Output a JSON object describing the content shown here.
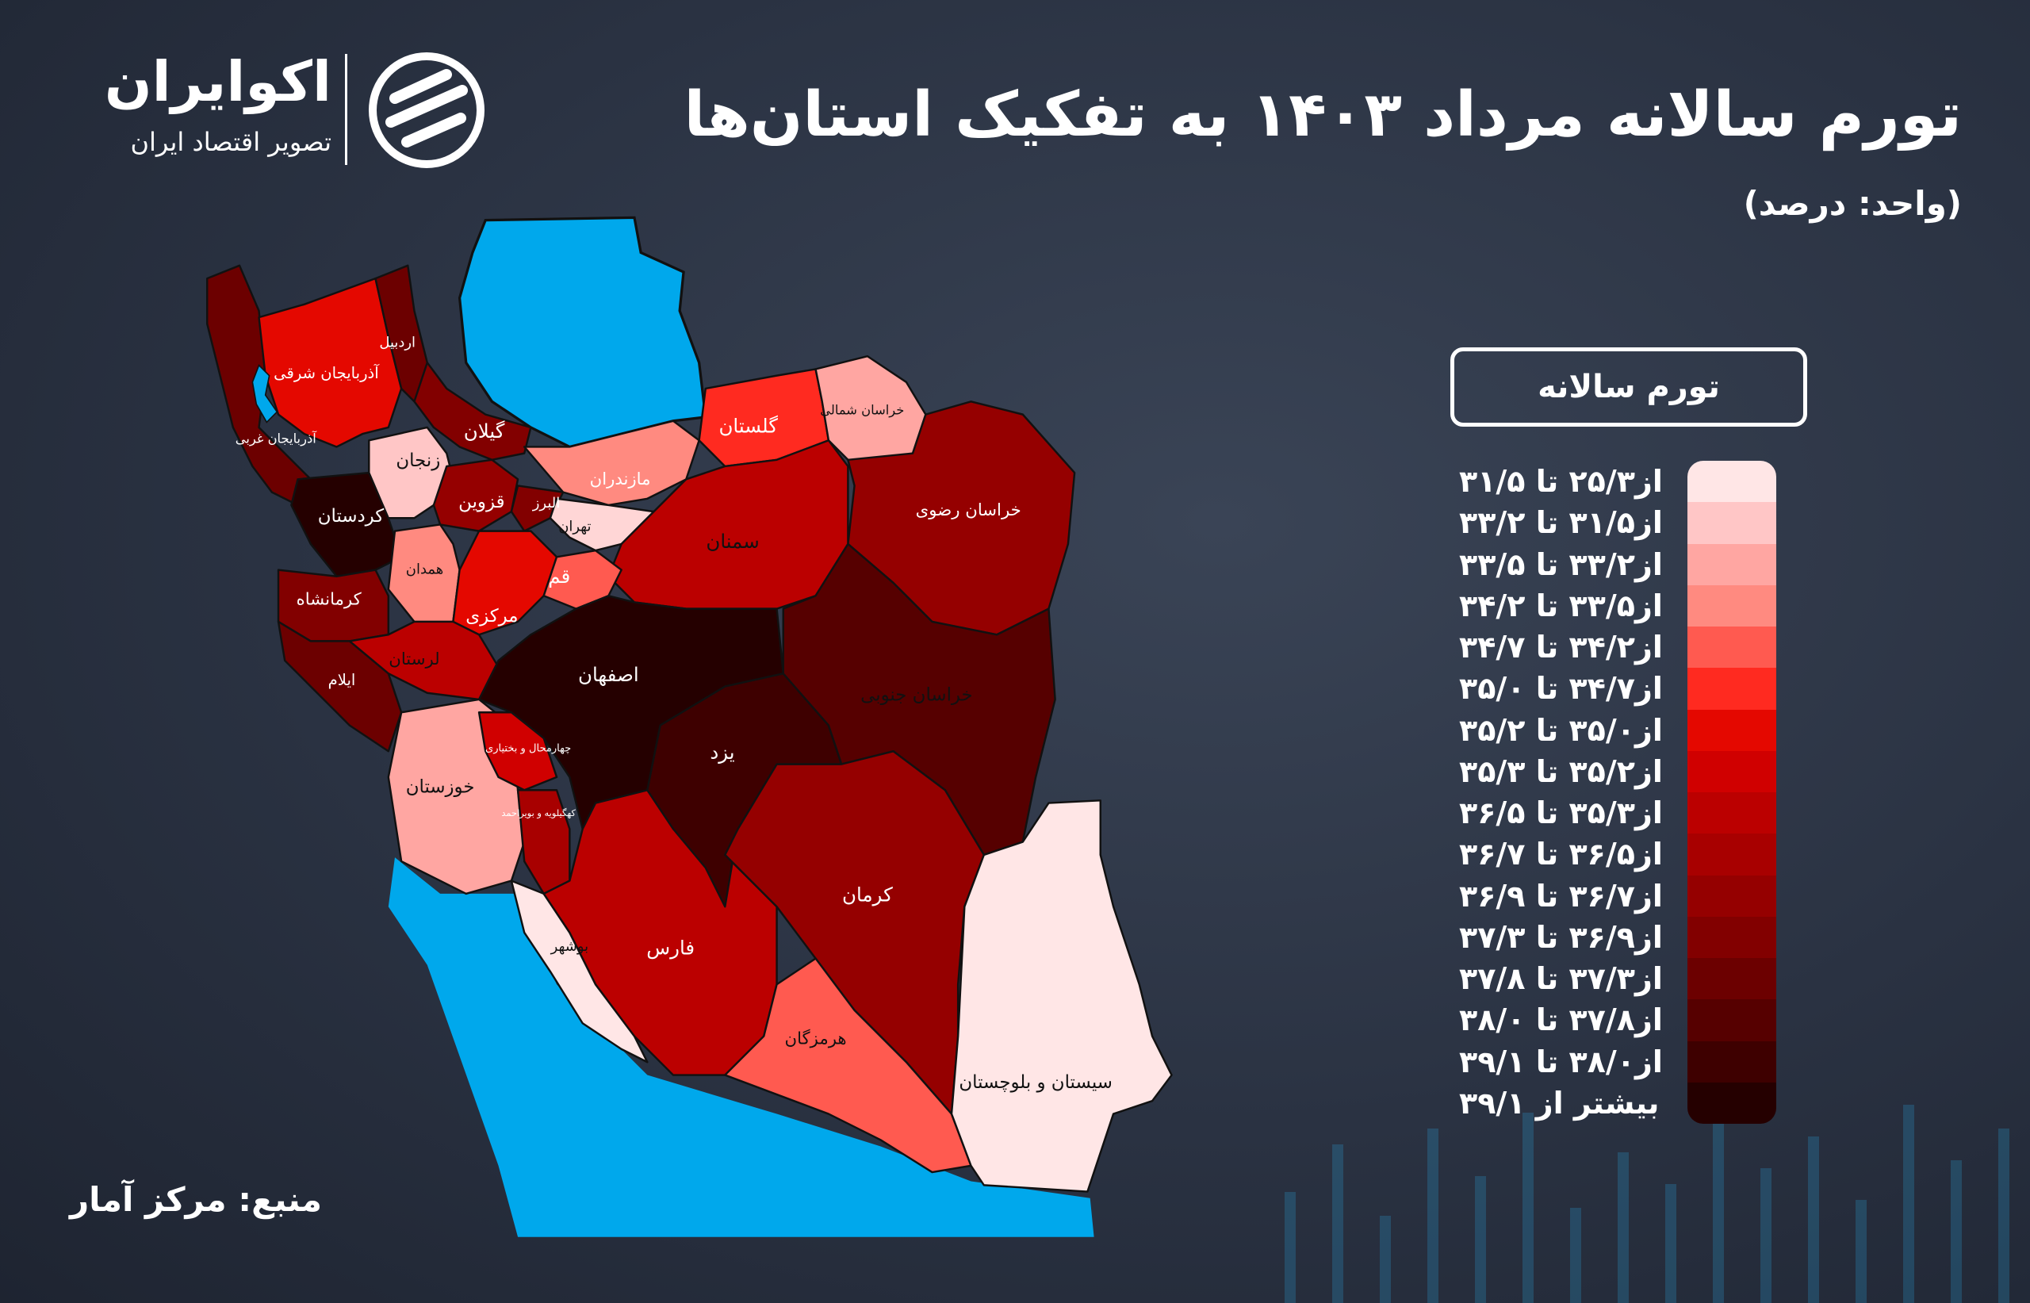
{
  "header": {
    "title": "تورم سالانه مرداد ۱۴۰۳ به تفکیک استان‌ها",
    "unit": "(واحد: درصد)"
  },
  "logo": {
    "name": "اکوایران",
    "tagline": "تصویر اقتصاد ایران"
  },
  "source": "منبع: مرکز آمار",
  "legend": {
    "title": "تورم سالانه",
    "items": [
      {
        "label": "از۲۵/۳ تا ۳۱/۵",
        "color": "#ffe6e6"
      },
      {
        "label": "از۳۱/۵ تا ۳۳/۲",
        "color": "#ffc6c6"
      },
      {
        "label": "از۳۳/۲ تا ۳۳/۵",
        "color": "#ffa6a2"
      },
      {
        "label": "از۳۳/۵ تا ۳۴/۲",
        "color": "#ff8a80"
      },
      {
        "label": "از۳۴/۲ تا ۳۴/۷",
        "color": "#ff5a50"
      },
      {
        "label": "از۳۴/۷ تا ۳۵/۰",
        "color": "#ff2a20"
      },
      {
        "label": "از۳۵/۰ تا ۳۵/۲",
        "color": "#e40800"
      },
      {
        "label": "از۳۵/۲ تا ۳۵/۳",
        "color": "#d00000"
      },
      {
        "label": "از۳۵/۳ تا ۳۶/۵",
        "color": "#bb0000"
      },
      {
        "label": "از۳۶/۵ تا ۳۶/۷",
        "color": "#a80000"
      },
      {
        "label": "از۳۶/۷ تا ۳۶/۹",
        "color": "#950000"
      },
      {
        "label": "از۳۶/۹ تا ۳۷/۳",
        "color": "#820000"
      },
      {
        "label": "از۳۷/۳ تا ۳۷/۸",
        "color": "#6c0000"
      },
      {
        "label": "از۳۷/۸ تا ۳۸/۰",
        "color": "#560000"
      },
      {
        "label": "از۳۸/۰ تا ۳۹/۱",
        "color": "#3e0000"
      },
      {
        "label": "بیشتر از ۳۹/۱",
        "color": "#250000"
      }
    ]
  },
  "map": {
    "water_color": "#00a8ec",
    "provinces": [
      {
        "id": "west-azarbaijan",
        "name": "آذربایجان غربی",
        "color": "#6c0000"
      },
      {
        "id": "east-azarbaijan",
        "name": "آذربایجان شرقی",
        "color": "#e40800"
      },
      {
        "id": "ardabil",
        "name": "اردبیل",
        "color": "#6c0000"
      },
      {
        "id": "gilan",
        "name": "گیلان",
        "color": "#820000"
      },
      {
        "id": "zanjan",
        "name": "زنجان",
        "color": "#ffc6c6"
      },
      {
        "id": "kordestan",
        "name": "کردستان",
        "color": "#250000"
      },
      {
        "id": "qazvin",
        "name": "قزوین",
        "color": "#950000"
      },
      {
        "id": "alborz",
        "name": "البرز",
        "color": "#820000"
      },
      {
        "id": "mazandaran",
        "name": "مازندران",
        "color": "#ff8a80"
      },
      {
        "id": "tehran",
        "name": "تهران",
        "color": "#ffd6d6"
      },
      {
        "id": "golestan",
        "name": "گلستان",
        "color": "#ff2a20"
      },
      {
        "id": "north-khorasan",
        "name": "خراسان شمالی",
        "color": "#ffa6a2"
      },
      {
        "id": "razavi-khorasan",
        "name": "خراسان رضوی",
        "color": "#950000"
      },
      {
        "id": "semnan",
        "name": "سمنان",
        "color": "#bb0000"
      },
      {
        "id": "hamedan",
        "name": "همدان",
        "color": "#ff8a80"
      },
      {
        "id": "kermanshah",
        "name": "کرمانشاه",
        "color": "#820000"
      },
      {
        "id": "markazi",
        "name": "مرکزی",
        "color": "#e40800"
      },
      {
        "id": "qom",
        "name": "قم",
        "color": "#ff5a50"
      },
      {
        "id": "lorestan",
        "name": "لرستان",
        "color": "#bb0000"
      },
      {
        "id": "ilam",
        "name": "ایلام",
        "color": "#6c0000"
      },
      {
        "id": "isfahan",
        "name": "اصفهان",
        "color": "#250000"
      },
      {
        "id": "khuzestan",
        "name": "خوزستان",
        "color": "#ffa6a2"
      },
      {
        "id": "chaharmahal",
        "name": "چهارمحال و بختیاری",
        "color": "#d00000"
      },
      {
        "id": "kohgiluyeh",
        "name": "کهگیلویه و بویراحمد",
        "color": "#a80000"
      },
      {
        "id": "bushehr",
        "name": "بوشهر",
        "color": "#ffe6e6"
      },
      {
        "id": "fars",
        "name": "فارس",
        "color": "#bb0000"
      },
      {
        "id": "yazd",
        "name": "یزد",
        "color": "#3e0000"
      },
      {
        "id": "south-khorasan",
        "name": "خراسان جنوبی",
        "color": "#560000"
      },
      {
        "id": "kerman",
        "name": "کرمان",
        "color": "#950000"
      },
      {
        "id": "hormozgan",
        "name": "هرمزگان",
        "color": "#ff5a50"
      },
      {
        "id": "sistan",
        "name": "سیستان و بلوچستان",
        "color": "#ffe6e6"
      }
    ]
  }
}
